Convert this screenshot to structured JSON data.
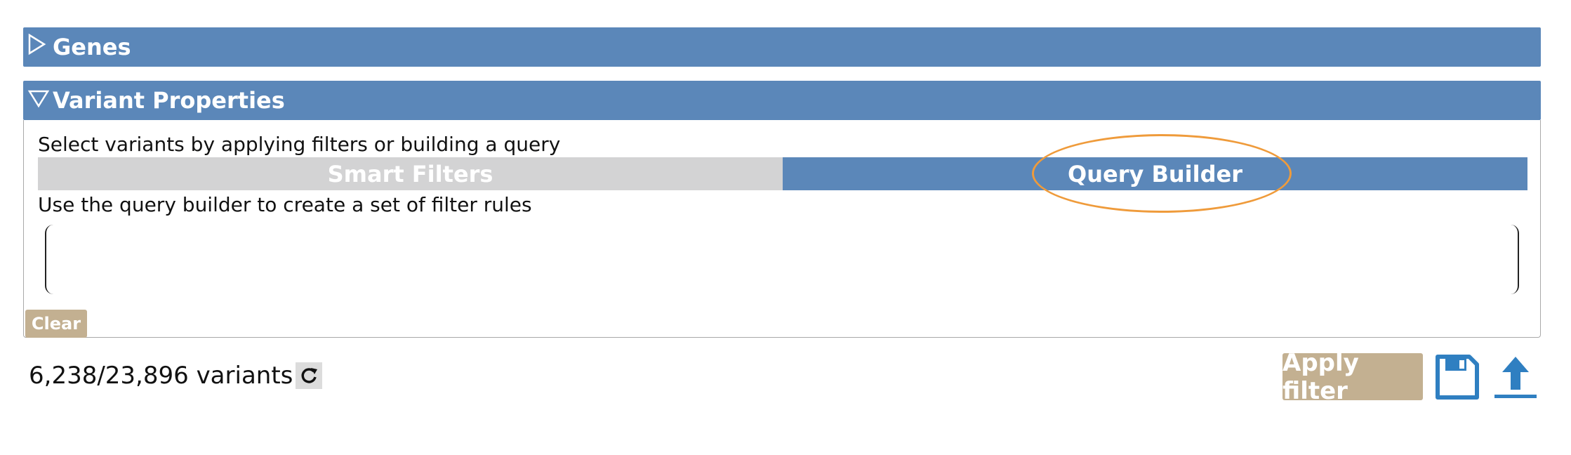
{
  "panels": {
    "genes": {
      "title": "Genes",
      "expanded": false,
      "icon": "triangle-right-icon"
    },
    "variant_properties": {
      "title": "Variant Properties",
      "expanded": true,
      "icon": "triangle-down-icon",
      "description": "Select variants by applying filters or building a query",
      "tabs": [
        {
          "label": "Smart Filters",
          "active": false
        },
        {
          "label": "Query Builder",
          "active": true
        }
      ],
      "query_builder_description": "Use the query builder to create a set of filter rules",
      "clear_label": "Clear"
    }
  },
  "footer": {
    "variant_count": "6,238/23,896 variants",
    "refresh_icon": "refresh-icon",
    "apply_label": "Apply filter",
    "save_icon": "floppy-disk-icon",
    "upload_icon": "upload-icon"
  },
  "colors": {
    "header_blue": "#5b87b9",
    "inactive_tab": "#d3d3d4",
    "button_tan": "#c3b091",
    "highlight_orange": "#ef9b3b",
    "icon_blue": "#2f7fc1"
  }
}
